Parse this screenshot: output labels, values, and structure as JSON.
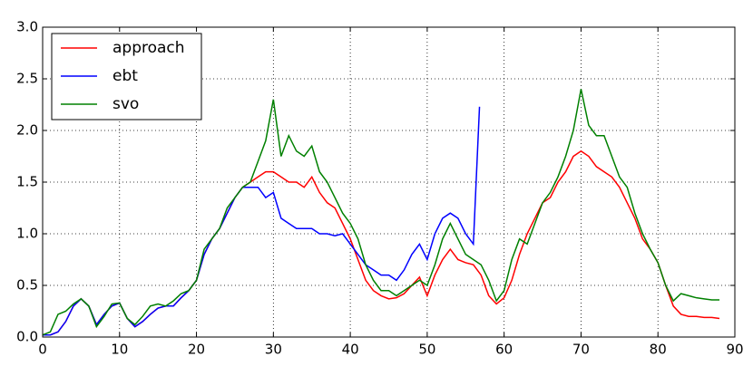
{
  "chart_data": {
    "type": "line",
    "xlim": [
      0,
      90
    ],
    "xticks": [
      0,
      10,
      20,
      30,
      40,
      50,
      60,
      70,
      80,
      90
    ],
    "ylim": [
      0,
      3
    ],
    "yticks": [
      {
        "value": 0,
        "label": "0.0"
      },
      0.5,
      {
        "value": 1,
        "label": "1.0"
      },
      1.5,
      {
        "value": 2,
        "label": "2.0"
      },
      2.5,
      {
        "value": 3,
        "label": "3.0"
      }
    ],
    "grid": true,
    "legend": "upper left",
    "series": [
      {
        "name": "approach",
        "color": "#ff0000",
        "x": [
          0,
          1,
          2,
          3,
          4,
          5,
          6,
          7,
          8,
          9,
          10,
          11,
          12,
          13,
          14,
          15,
          16,
          17,
          18,
          19,
          20,
          21,
          22,
          23,
          24,
          25,
          26,
          27,
          28,
          29,
          30,
          31,
          32,
          33,
          34,
          35,
          36,
          37,
          38,
          39,
          40,
          41,
          42,
          43,
          44,
          45,
          46,
          47,
          48,
          49,
          50,
          51,
          52,
          53,
          54,
          55,
          56,
          57,
          58,
          59,
          60,
          61,
          62,
          63,
          64,
          65,
          66,
          67,
          68,
          69,
          70,
          71,
          72,
          73,
          74,
          75,
          76,
          77,
          78,
          79,
          80,
          81,
          82,
          83,
          84,
          85,
          86,
          87,
          88
        ],
        "values": [
          0.02,
          0.02,
          0.05,
          0.15,
          0.3,
          0.37,
          0.3,
          0.12,
          0.22,
          0.3,
          0.33,
          0.18,
          0.1,
          0.15,
          0.22,
          0.28,
          0.3,
          0.3,
          0.38,
          0.45,
          0.55,
          0.8,
          0.95,
          1.05,
          1.2,
          1.35,
          1.45,
          1.5,
          1.55,
          1.6,
          1.6,
          1.55,
          1.5,
          1.5,
          1.45,
          1.55,
          1.4,
          1.3,
          1.25,
          1.1,
          0.95,
          0.75,
          0.55,
          0.45,
          0.4,
          0.37,
          0.38,
          0.42,
          0.5,
          0.58,
          0.4,
          0.6,
          0.75,
          0.85,
          0.75,
          0.72,
          0.7,
          0.6,
          0.4,
          0.32,
          0.38,
          0.55,
          0.8,
          1.0,
          1.15,
          1.3,
          1.35,
          1.5,
          1.6,
          1.75,
          1.8,
          1.75,
          1.65,
          1.6,
          1.55,
          1.45,
          1.3,
          1.15,
          0.95,
          0.85,
          0.72,
          0.5,
          0.3,
          0.22,
          0.2,
          0.2,
          0.19,
          0.19,
          0.18
        ]
      },
      {
        "name": "ebt",
        "color": "#0000ff",
        "x": [
          0,
          1,
          2,
          3,
          4,
          5,
          6,
          7,
          8,
          9,
          10,
          11,
          12,
          13,
          14,
          15,
          16,
          17,
          18,
          19,
          20,
          21,
          22,
          23,
          24,
          25,
          26,
          27,
          28,
          29,
          30,
          31,
          32,
          33,
          34,
          35,
          36,
          37,
          38,
          39,
          40,
          41,
          42,
          43,
          44,
          45,
          46,
          47,
          48,
          49,
          50,
          51,
          52,
          53,
          54,
          55,
          56,
          56.8
        ],
        "values": [
          0.02,
          0.02,
          0.05,
          0.15,
          0.3,
          0.37,
          0.3,
          0.12,
          0.22,
          0.3,
          0.33,
          0.18,
          0.1,
          0.15,
          0.22,
          0.28,
          0.3,
          0.3,
          0.38,
          0.45,
          0.55,
          0.8,
          0.95,
          1.05,
          1.2,
          1.35,
          1.45,
          1.45,
          1.45,
          1.35,
          1.4,
          1.15,
          1.1,
          1.05,
          1.05,
          1.05,
          1.0,
          1.0,
          0.98,
          1.0,
          0.9,
          0.8,
          0.7,
          0.65,
          0.6,
          0.6,
          0.55,
          0.65,
          0.8,
          0.9,
          0.75,
          1.0,
          1.15,
          1.2,
          1.15,
          1.0,
          0.9,
          2.23
        ]
      },
      {
        "name": "svo",
        "color": "#008000",
        "x": [
          0,
          1,
          2,
          3,
          4,
          5,
          6,
          7,
          8,
          9,
          10,
          11,
          12,
          13,
          14,
          15,
          16,
          17,
          18,
          19,
          20,
          21,
          22,
          23,
          24,
          25,
          26,
          27,
          28,
          29,
          30,
          31,
          32,
          33,
          34,
          35,
          36,
          37,
          38,
          39,
          40,
          41,
          42,
          43,
          44,
          45,
          46,
          47,
          48,
          49,
          50,
          51,
          52,
          53,
          54,
          55,
          56,
          57,
          58,
          59,
          60,
          61,
          62,
          63,
          64,
          65,
          66,
          67,
          68,
          69,
          70,
          71,
          72,
          73,
          74,
          75,
          76,
          77,
          78,
          79,
          80,
          81,
          82,
          83,
          84,
          85,
          86,
          87,
          88
        ],
        "values": [
          0.02,
          0.05,
          0.22,
          0.25,
          0.32,
          0.37,
          0.3,
          0.1,
          0.2,
          0.32,
          0.33,
          0.18,
          0.12,
          0.2,
          0.3,
          0.32,
          0.3,
          0.35,
          0.42,
          0.45,
          0.55,
          0.85,
          0.95,
          1.05,
          1.25,
          1.35,
          1.45,
          1.5,
          1.7,
          1.9,
          2.3,
          1.75,
          1.95,
          1.8,
          1.75,
          1.85,
          1.6,
          1.5,
          1.35,
          1.2,
          1.1,
          0.95,
          0.7,
          0.55,
          0.45,
          0.45,
          0.4,
          0.45,
          0.5,
          0.55,
          0.5,
          0.7,
          0.95,
          1.1,
          0.95,
          0.8,
          0.75,
          0.7,
          0.55,
          0.35,
          0.45,
          0.75,
          0.95,
          0.9,
          1.1,
          1.3,
          1.4,
          1.55,
          1.75,
          2.0,
          2.4,
          2.05,
          1.95,
          1.95,
          1.75,
          1.55,
          1.45,
          1.2,
          1.0,
          0.85,
          0.72,
          0.5,
          0.35,
          0.42,
          0.4,
          0.38,
          0.37,
          0.36,
          0.36
        ]
      }
    ]
  }
}
